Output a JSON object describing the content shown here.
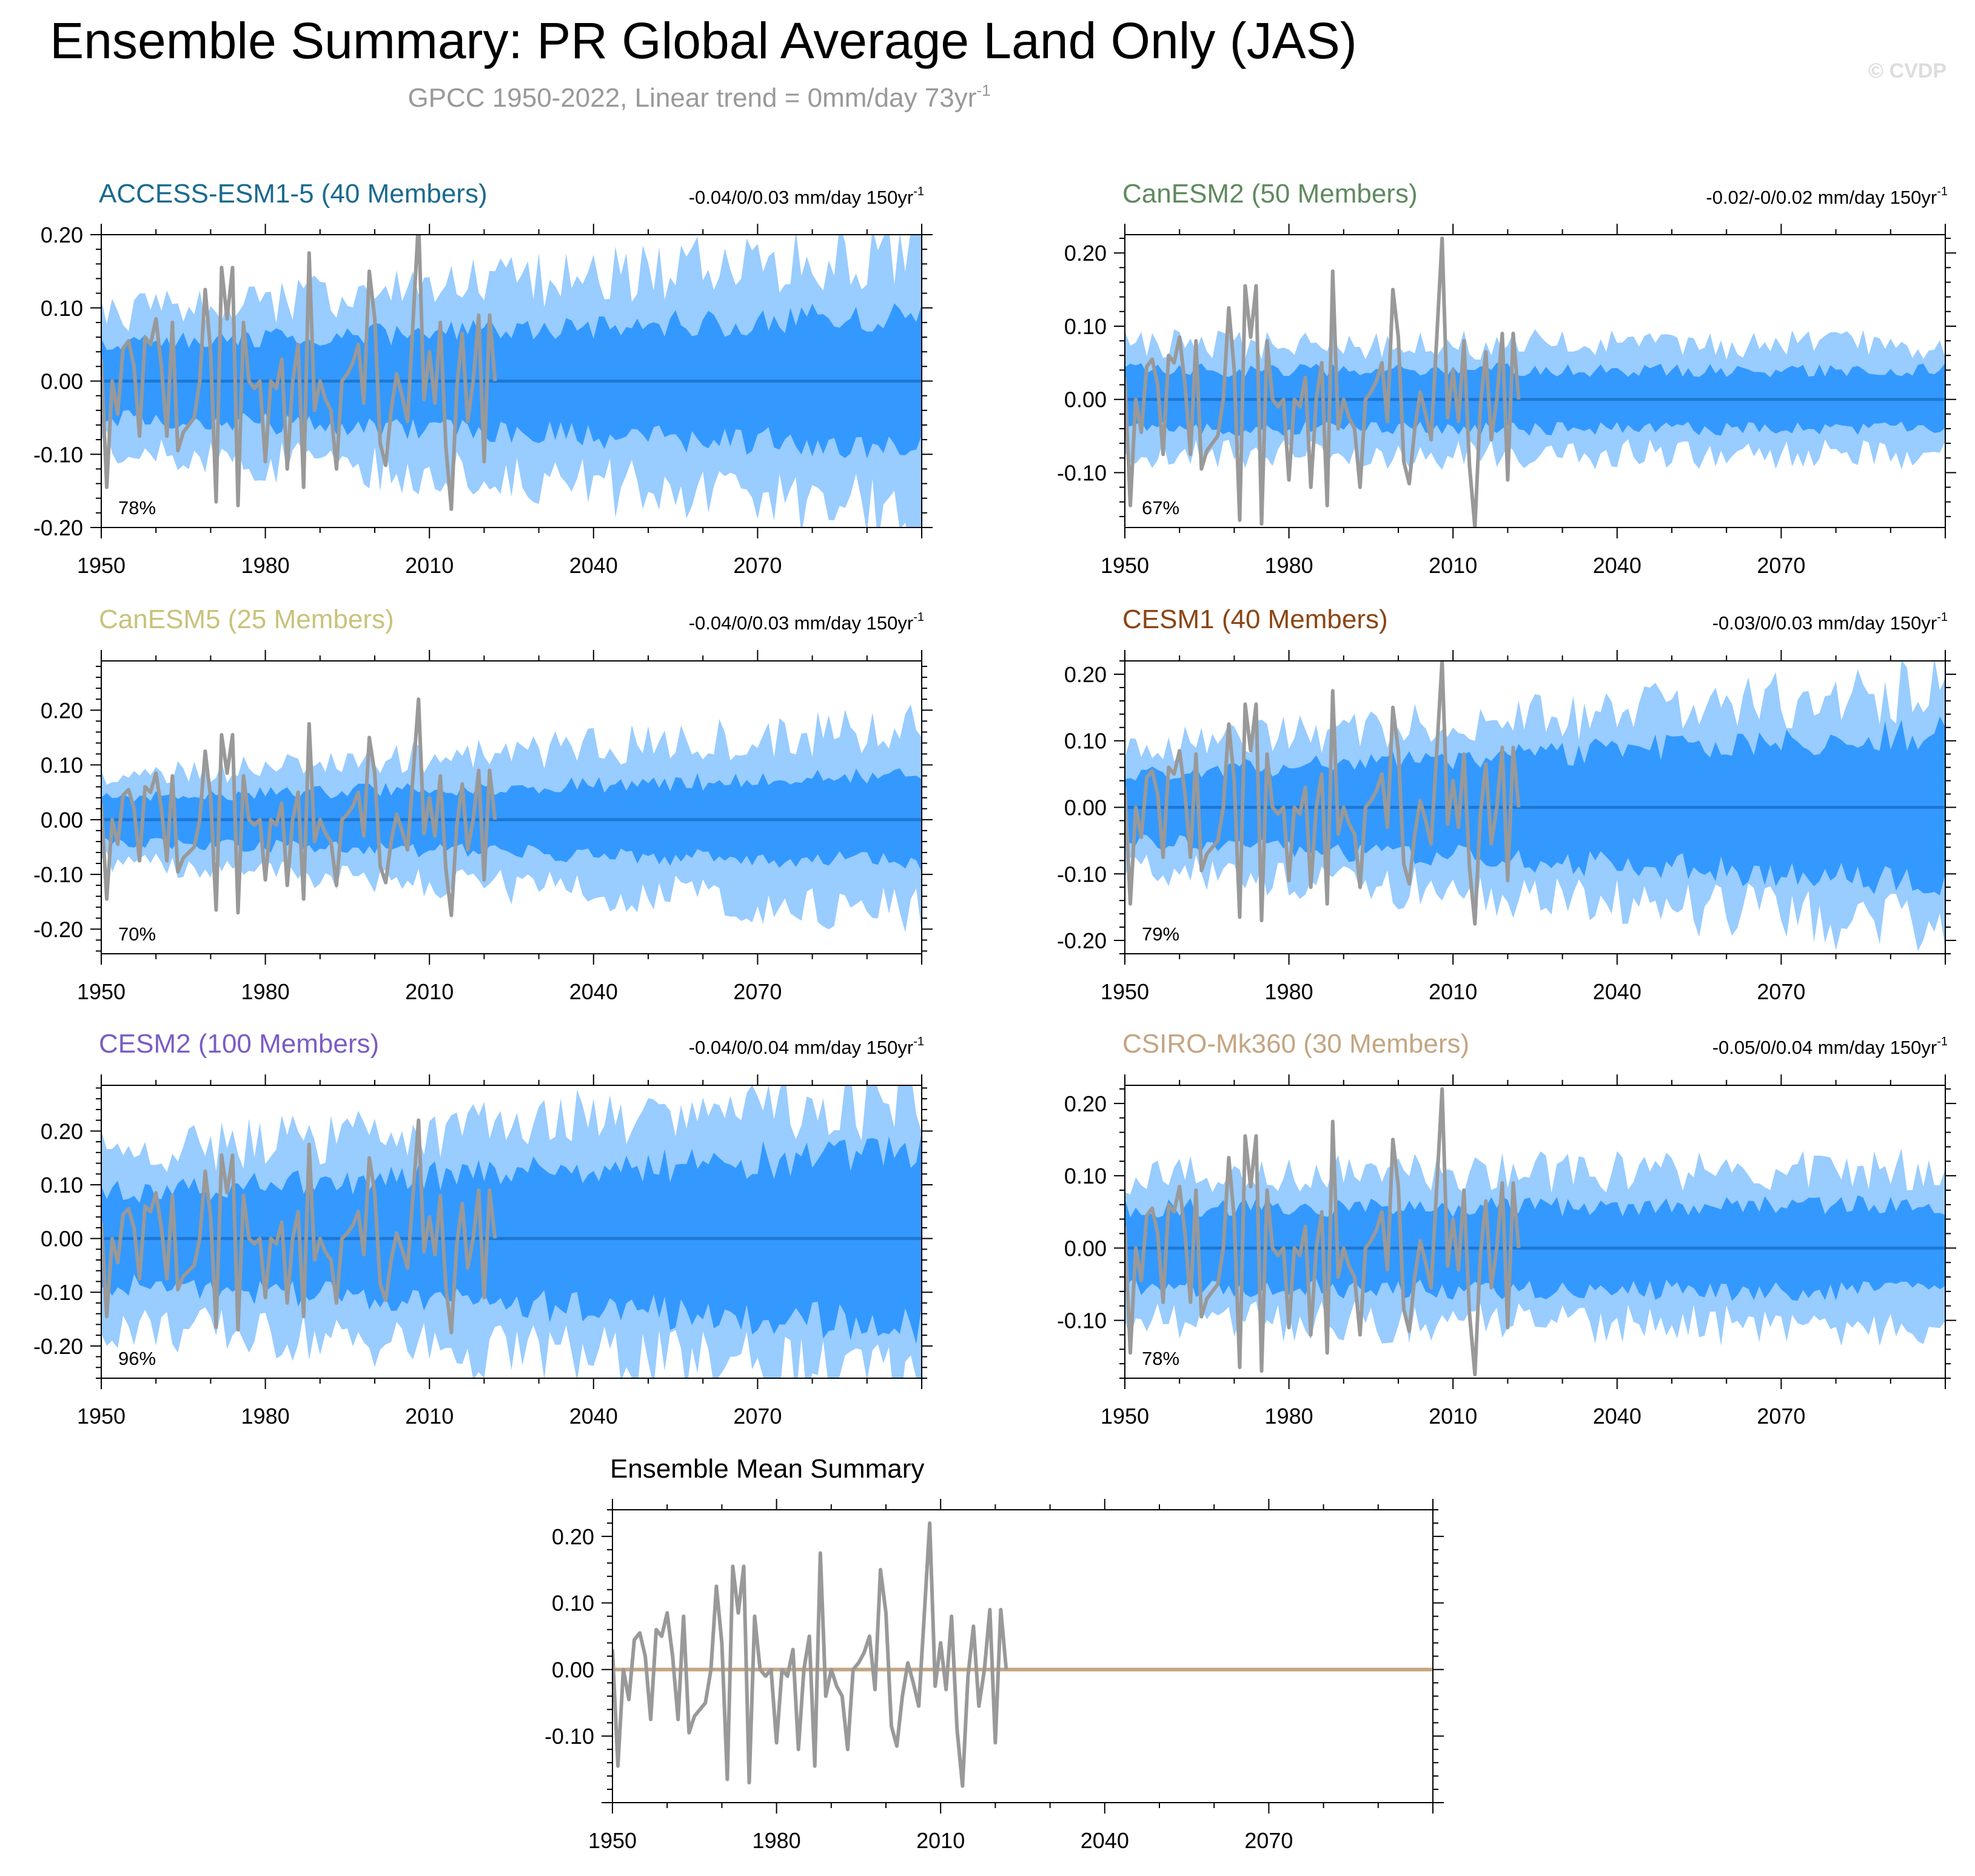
{
  "title": "Ensemble Summary: PR Global Average Land Only (JAS)",
  "subtitle": "GPCC 1950-2022, Linear trend = 0mm/day 73yr",
  "subtitle_sup": "-1",
  "copyright": "© CVDP",
  "colors": {
    "band_outer": "#99ccff",
    "band_inner": "#3399ff",
    "ensemble_mean": "#1e78d2",
    "observations": "#999999",
    "mean_summary_line": "#c4a582"
  },
  "chart_data": [
    {
      "type": "area",
      "title": "ACCESS-ESM1-5 (40 Members)",
      "title_color": "#1a6a8f",
      "trend": "-0.04/0/0.03 mm/day 150yr",
      "trend_sup": "-1",
      "percent": "78%",
      "x_ticks": [
        "1950",
        "1980",
        "2010",
        "2040",
        "2070"
      ],
      "y_ticks": [
        "0.20",
        "0.10",
        "0.00",
        "-0.10",
        "-0.20"
      ],
      "xlim": [
        1950,
        2100
      ],
      "ylim": [
        -0.2,
        0.2
      ],
      "inner_band_halfwidth": {
        "1950": 0.05,
        "2100": 0.09
      },
      "outer_band_halfwidth": {
        "1950": 0.09,
        "2100": 0.18
      },
      "ensemble_mean": 0.0,
      "grid": false
    },
    {
      "type": "area",
      "title": "CanESM2 (50 Members)",
      "title_color": "#5f8a5f",
      "trend": "-0.02/-0/0.02 mm/day 150yr",
      "trend_sup": "-1",
      "percent": "67%",
      "x_ticks": [
        "1950",
        "1980",
        "2010",
        "2040",
        "2070"
      ],
      "y_ticks": [
        "0.20",
        "0.10",
        "0.00",
        "-0.10"
      ],
      "xlim": [
        1950,
        2100
      ],
      "ylim": [
        -0.175,
        0.225
      ],
      "inner_band_halfwidth": {
        "1950": 0.04,
        "2100": 0.04
      },
      "outer_band_halfwidth": {
        "1950": 0.075,
        "2100": 0.075
      },
      "ensemble_mean": 0.0,
      "grid": false
    },
    {
      "type": "area",
      "title": "CanESM5 (25 Members)",
      "title_color": "#c9c27a",
      "trend": "-0.04/0/0.03 mm/day 150yr",
      "trend_sup": "-1",
      "percent": "70%",
      "x_ticks": [
        "1950",
        "1980",
        "2010",
        "2040",
        "2070"
      ],
      "y_ticks": [
        "0.20",
        "0.10",
        "0.00",
        "-0.10",
        "-0.20"
      ],
      "xlim": [
        1950,
        2100
      ],
      "ylim": [
        -0.245,
        0.29
      ],
      "inner_band_halfwidth": {
        "1950": 0.04,
        "2100": 0.08
      },
      "outer_band_halfwidth": {
        "1950": 0.075,
        "2100": 0.17
      },
      "ensemble_mean": 0.0,
      "grid": false
    },
    {
      "type": "area",
      "title": "CESM1 (40 Members)",
      "title_color": "#8b4513",
      "trend": "-0.03/0/0.03 mm/day 150yr",
      "trend_sup": "-1",
      "percent": "79%",
      "x_ticks": [
        "1950",
        "1980",
        "2010",
        "2040",
        "2070"
      ],
      "y_ticks": [
        "0.20",
        "0.10",
        "0.00",
        "-0.10",
        "-0.20"
      ],
      "xlim": [
        1950,
        2100
      ],
      "ylim": [
        -0.22,
        0.22
      ],
      "inner_band_halfwidth": {
        "1950": 0.05,
        "2100": 0.11
      },
      "outer_band_halfwidth": {
        "1950": 0.09,
        "2100": 0.18
      },
      "ensemble_mean": 0.0,
      "grid": false
    },
    {
      "type": "area",
      "title": "CESM2 (100 Members)",
      "title_color": "#7b5cc4",
      "trend": "-0.04/0/0.04 mm/day 150yr",
      "trend_sup": "-1",
      "percent": "96%",
      "x_ticks": [
        "1950",
        "1980",
        "2010",
        "2040",
        "2070"
      ],
      "y_ticks": [
        "0.20",
        "0.10",
        "0.00",
        "-0.10",
        "-0.20"
      ],
      "xlim": [
        1950,
        2100
      ],
      "ylim": [
        -0.26,
        0.285
      ],
      "inner_band_halfwidth": {
        "1950": 0.085,
        "2100": 0.16
      },
      "outer_band_halfwidth": {
        "1950": 0.16,
        "2100": 0.26
      },
      "ensemble_mean": 0.0,
      "grid": false
    },
    {
      "type": "area",
      "title": "CSIRO-Mk360 (30 Members)",
      "title_color": "#c4a582",
      "trend": "-0.05/0/0.04 mm/day 150yr",
      "trend_sup": "-1",
      "percent": "78%",
      "x_ticks": [
        "1950",
        "1980",
        "2010",
        "2040",
        "2070"
      ],
      "y_ticks": [
        "0.20",
        "0.10",
        "0.00",
        "-0.10"
      ],
      "xlim": [
        1950,
        2100
      ],
      "ylim": [
        -0.18,
        0.225
      ],
      "inner_band_halfwidth": {
        "1950": 0.055,
        "2100": 0.06
      },
      "outer_band_halfwidth": {
        "1950": 0.1,
        "2100": 0.11
      },
      "ensemble_mean": 0.0,
      "grid": false
    },
    {
      "type": "line",
      "title": "Ensemble Mean Summary",
      "title_color": "#000000",
      "x_ticks": [
        "1950",
        "1980",
        "2010",
        "2040",
        "2070"
      ],
      "y_ticks": [
        "0.20",
        "0.10",
        "0.00",
        "-0.10"
      ],
      "xlim": [
        1950,
        2100
      ],
      "ylim": [
        -0.2,
        0.24
      ],
      "series": [
        {
          "values_by_year": {
            "1950": 0.0,
            "2100": 0.0
          }
        }
      ],
      "grid": false
    }
  ],
  "observations": {
    "x_start": 1950,
    "x_end": 2022,
    "values": [
      0.03,
      -0.145,
      0.0,
      -0.045,
      0.045,
      0.055,
      0.02,
      -0.075,
      0.06,
      0.05,
      0.085,
      0.02,
      -0.075,
      0.08,
      -0.095,
      -0.07,
      -0.06,
      -0.05,
      0.0,
      0.125,
      0.04,
      -0.165,
      0.155,
      0.085,
      0.155,
      -0.17,
      0.08,
      0.0,
      -0.01,
      0.0,
      -0.11,
      0.0,
      -0.01,
      0.03,
      -0.12,
      0.0,
      0.05,
      -0.145,
      0.175,
      -0.04,
      0.0,
      -0.025,
      -0.04,
      -0.12,
      0.0,
      0.01,
      0.025,
      0.05,
      -0.03,
      0.15,
      0.085,
      -0.085,
      -0.115,
      -0.04,
      0.01,
      -0.02,
      -0.055,
      0.08,
      0.22,
      -0.025,
      0.04,
      -0.03,
      0.08,
      -0.09,
      -0.175,
      -0.01,
      0.065,
      -0.055,
      0.0,
      0.09,
      -0.11,
      0.09,
      0.0
    ]
  }
}
